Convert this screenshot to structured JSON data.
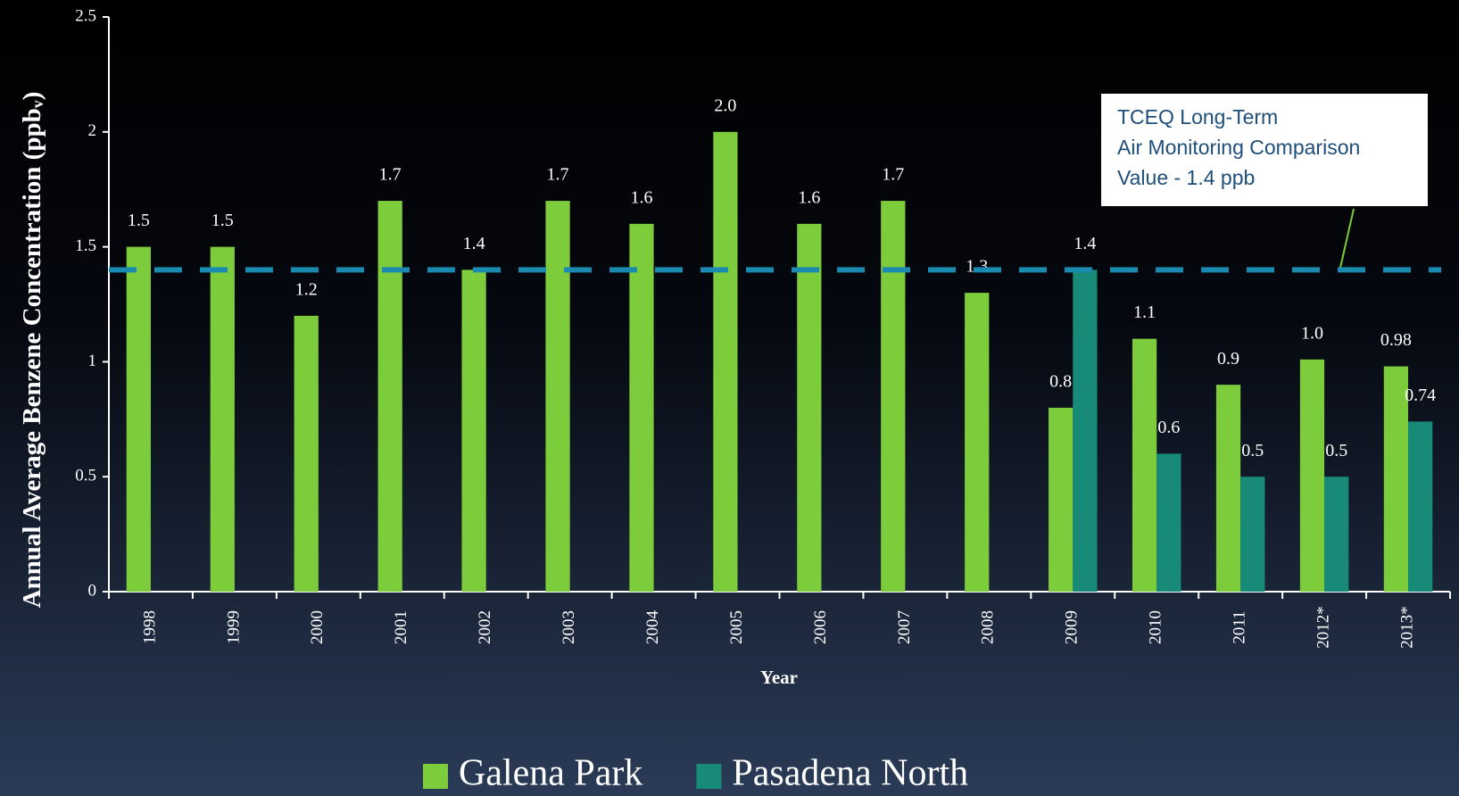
{
  "chart_data": {
    "type": "bar",
    "y_label": [
      "Annual Average Benzene Concentration (ppb",
      "v",
      ")"
    ],
    "x_label": "Year",
    "categories": [
      "1998",
      "1999",
      "2000",
      "2001",
      "2002",
      "2003",
      "2004",
      "2005",
      "2006",
      "2007",
      "2008",
      "2009",
      "2010",
      "2011",
      "2012*",
      "2013*"
    ],
    "series": [
      {
        "name": "Galena Park",
        "color": "#7dcc3c",
        "values": [
          1.5,
          1.5,
          1.2,
          1.7,
          1.4,
          1.7,
          1.6,
          2.0,
          1.6,
          1.7,
          1.3,
          0.8,
          1.1,
          0.9,
          1.01,
          0.98
        ],
        "value_labels": [
          "1.5",
          "1.5",
          "1.2",
          "1.7",
          "1.4",
          "1.7",
          "1.6",
          "2.0",
          "1.6",
          "1.7",
          "1.3",
          "0.8",
          "1.1",
          "0.9",
          "1.0",
          "0.98"
        ]
      },
      {
        "name": "Pasadena North",
        "color": "#178a78",
        "values": [
          null,
          null,
          null,
          null,
          null,
          null,
          null,
          null,
          null,
          null,
          null,
          1.4,
          0.6,
          0.5,
          0.5,
          0.74
        ],
        "value_labels": [
          null,
          null,
          null,
          null,
          null,
          null,
          null,
          null,
          null,
          null,
          null,
          "1.4",
          "0.6",
          "0.5",
          "0.5",
          "0.74"
        ]
      }
    ],
    "ylim": [
      0,
      2.5
    ],
    "yticks": [
      0,
      0.5,
      1,
      1.5,
      2,
      2.5
    ],
    "reference_line": {
      "value": 1.4,
      "color": "#1a8ab0"
    },
    "annotation": [
      "TCEQ Long-Term",
      "Air Monitoring Comparison",
      "Value - 1.4 ppb"
    ],
    "legend": "bottom"
  }
}
